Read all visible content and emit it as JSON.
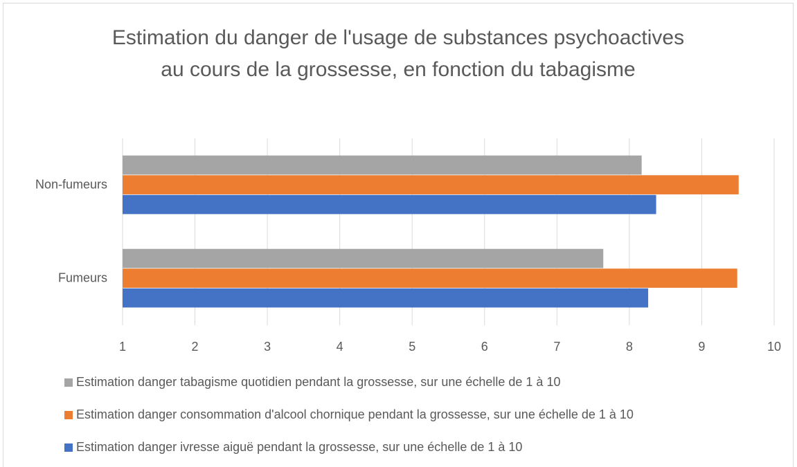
{
  "chart_data": {
    "type": "hbar",
    "title": "Estimation du danger de l'usage de substances psychoactives au cours de la grossesse, en fonction du tabagisme",
    "categories": [
      "Fumeurs",
      "Non-fumeurs"
    ],
    "series": [
      {
        "name": "Estimation danger tabagisme quotidien pendant la grossesse, sur une échelle de 1 à 10",
        "color": "#a5a5a5",
        "values": [
          7.64,
          8.17
        ]
      },
      {
        "name": "Estimation danger consommation d'alcool chornique pendant la grossesse, sur une échelle de 1 à 10",
        "color": "#ed7d31",
        "values": [
          9.49,
          9.51
        ]
      },
      {
        "name": "Estimation danger ivresse aiguë pendant la grossesse, sur une échelle de 1 à 10",
        "color": "#4472c4",
        "values": [
          8.26,
          8.37
        ]
      }
    ],
    "xlim": [
      1,
      10
    ],
    "xticks": [
      1,
      2,
      3,
      4,
      5,
      6,
      7,
      8,
      9,
      10
    ],
    "grid": true,
    "legend": "bottom"
  }
}
